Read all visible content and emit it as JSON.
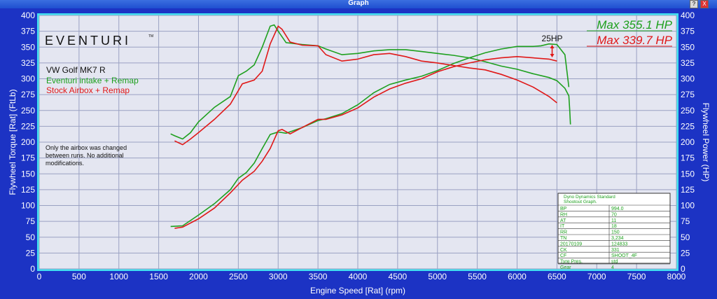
{
  "window": {
    "title": "Graph",
    "help_label": "?",
    "close_label": "X"
  },
  "chart_data": {
    "type": "line",
    "xlabel": "Engine Speed [Rat] (rpm)",
    "ylabel_left": "Flywheel Torque [Rat] (FtLb)",
    "ylabel_right": "Flywheel Power (HP)",
    "xlim": [
      0,
      8000
    ],
    "ylim": [
      0,
      400
    ],
    "x_ticks": [
      "0",
      "500",
      "1000",
      "1500",
      "2000",
      "2500",
      "3000",
      "3500",
      "4000",
      "4500",
      "5000",
      "5500",
      "6000",
      "6500",
      "7000",
      "7500",
      "8000"
    ],
    "y_ticks": [
      "0",
      "25",
      "50",
      "75",
      "100",
      "125",
      "150",
      "175",
      "200",
      "225",
      "250",
      "275",
      "300",
      "325",
      "350",
      "375",
      "400"
    ],
    "grid": true,
    "logo": "EVENTURI",
    "logo_tm": "TM",
    "car_label": "VW Golf MK7 R",
    "legend_position": "top-left",
    "series": [
      {
        "name": "Eventuri intake + Remap",
        "color": "#1ea01e",
        "torque": [
          [
            1650,
            213
          ],
          [
            1700,
            210
          ],
          [
            1800,
            205
          ],
          [
            1900,
            215
          ],
          [
            2000,
            232
          ],
          [
            2200,
            255
          ],
          [
            2400,
            272
          ],
          [
            2500,
            305
          ],
          [
            2600,
            312
          ],
          [
            2700,
            322
          ],
          [
            2800,
            350
          ],
          [
            2900,
            383
          ],
          [
            2950,
            385
          ],
          [
            3000,
            375
          ],
          [
            3100,
            357
          ],
          [
            3300,
            354
          ],
          [
            3500,
            352
          ],
          [
            3600,
            347
          ],
          [
            3800,
            338
          ],
          [
            4000,
            340
          ],
          [
            4200,
            344
          ],
          [
            4400,
            346
          ],
          [
            4600,
            346
          ],
          [
            4800,
            343
          ],
          [
            5000,
            340
          ],
          [
            5200,
            337
          ],
          [
            5400,
            333
          ],
          [
            5600,
            327
          ],
          [
            5800,
            320
          ],
          [
            6000,
            315
          ],
          [
            6200,
            308
          ],
          [
            6400,
            302
          ],
          [
            6500,
            297
          ],
          [
            6600,
            285
          ],
          [
            6650,
            273
          ],
          [
            6660,
            252
          ],
          [
            6670,
            228
          ]
        ],
        "power": [
          [
            1650,
            67
          ],
          [
            1800,
            68
          ],
          [
            2000,
            85
          ],
          [
            2200,
            103
          ],
          [
            2400,
            125
          ],
          [
            2500,
            143
          ],
          [
            2600,
            152
          ],
          [
            2700,
            167
          ],
          [
            2800,
            190
          ],
          [
            2900,
            212
          ],
          [
            3000,
            216
          ],
          [
            3100,
            214
          ],
          [
            3300,
            223
          ],
          [
            3500,
            234
          ],
          [
            3600,
            237
          ],
          [
            3800,
            245
          ],
          [
            4000,
            259
          ],
          [
            4200,
            278
          ],
          [
            4400,
            291
          ],
          [
            4600,
            298
          ],
          [
            4800,
            304
          ],
          [
            5000,
            313
          ],
          [
            5200,
            324
          ],
          [
            5400,
            333
          ],
          [
            5600,
            341
          ],
          [
            5800,
            347
          ],
          [
            6000,
            351
          ],
          [
            6200,
            351
          ],
          [
            6300,
            352
          ],
          [
            6400,
            355
          ],
          [
            6500,
            354
          ],
          [
            6600,
            338
          ],
          [
            6620,
            318
          ],
          [
            6650,
            287
          ]
        ]
      },
      {
        "name": "Stock Airbox + Remap",
        "color": "#e01818",
        "torque": [
          [
            1700,
            202
          ],
          [
            1800,
            196
          ],
          [
            1900,
            205
          ],
          [
            2000,
            215
          ],
          [
            2200,
            236
          ],
          [
            2400,
            260
          ],
          [
            2550,
            292
          ],
          [
            2700,
            298
          ],
          [
            2800,
            312
          ],
          [
            2900,
            355
          ],
          [
            3000,
            383
          ],
          [
            3050,
            378
          ],
          [
            3150,
            358
          ],
          [
            3300,
            353
          ],
          [
            3500,
            352
          ],
          [
            3600,
            338
          ],
          [
            3800,
            328
          ],
          [
            4000,
            331
          ],
          [
            4200,
            338
          ],
          [
            4400,
            340
          ],
          [
            4600,
            335
          ],
          [
            4800,
            328
          ],
          [
            5000,
            325
          ],
          [
            5200,
            321
          ],
          [
            5400,
            317
          ],
          [
            5600,
            314
          ],
          [
            5800,
            307
          ],
          [
            6000,
            298
          ],
          [
            6200,
            287
          ],
          [
            6400,
            272
          ],
          [
            6500,
            262
          ]
        ],
        "power": [
          [
            1700,
            64
          ],
          [
            1800,
            66
          ],
          [
            2000,
            79
          ],
          [
            2200,
            96
          ],
          [
            2400,
            120
          ],
          [
            2550,
            140
          ],
          [
            2700,
            154
          ],
          [
            2800,
            170
          ],
          [
            2900,
            190
          ],
          [
            3000,
            218
          ],
          [
            3050,
            220
          ],
          [
            3150,
            213
          ],
          [
            3300,
            223
          ],
          [
            3500,
            236
          ],
          [
            3600,
            236
          ],
          [
            3800,
            243
          ],
          [
            4000,
            254
          ],
          [
            4200,
            271
          ],
          [
            4400,
            284
          ],
          [
            4600,
            293
          ],
          [
            4800,
            300
          ],
          [
            5000,
            311
          ],
          [
            5200,
            319
          ],
          [
            5400,
            325
          ],
          [
            5600,
            330
          ],
          [
            5800,
            333
          ],
          [
            6000,
            335
          ],
          [
            6200,
            333
          ],
          [
            6400,
            331
          ],
          [
            6500,
            328
          ]
        ]
      }
    ],
    "max_labels": {
      "green": "Max 355.1 HP",
      "red": "Max 339.7 HP"
    },
    "annotation": {
      "text": "25HP",
      "x": 6440
    },
    "note": [
      "Only the airbox was changed",
      "between runs. No additional",
      "modifications."
    ],
    "info_table": {
      "title_lines": [
        "Dyno Dynamics Standard",
        "Shootout Graph."
      ],
      "rows": [
        [
          "BP",
          "994.0"
        ],
        [
          "RH",
          "70"
        ],
        [
          "AT",
          "11"
        ],
        [
          "IT",
          "18"
        ],
        [
          "RR",
          "150"
        ],
        [
          "TN",
          "3,234"
        ],
        [
          "20170109",
          "124833"
        ],
        [
          "CK",
          "331"
        ],
        [
          "CF",
          "SHOOT_4F"
        ],
        [
          "Tyre Pres.",
          "std"
        ],
        [
          "Gear",
          "4"
        ]
      ]
    }
  }
}
